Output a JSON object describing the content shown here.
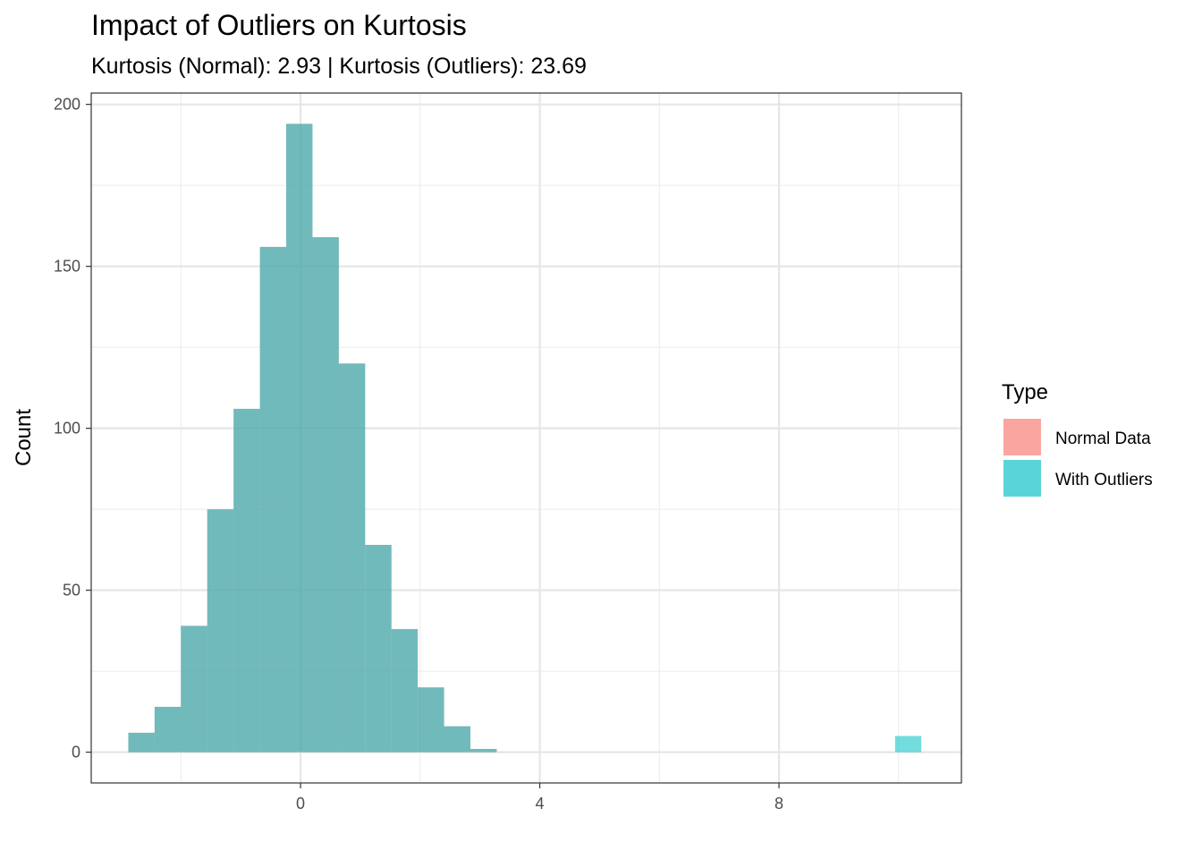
{
  "chart_data": {
    "type": "bar",
    "title": "Impact of Outliers on Kurtosis",
    "subtitle": "Kurtosis (Normal): 2.93 | Kurtosis (Outliers): 23.69",
    "xlabel": "",
    "ylabel": "Count",
    "xlim": [
      -3.5,
      11.05
    ],
    "ylim": [
      -9.5,
      203.5
    ],
    "x_ticks": [
      0,
      4,
      8
    ],
    "y_ticks": [
      0,
      50,
      100,
      150,
      200
    ],
    "binwidth": 0.44,
    "grid": true,
    "legend": {
      "title": "Type",
      "position": "right",
      "items": [
        {
          "label": "Normal Data",
          "color": "#F8766D"
        },
        {
          "label": "With Outliers",
          "color": "#00BFC4"
        }
      ]
    },
    "series": [
      {
        "name": "Normal Data",
        "color": "#F8766D",
        "bins": [
          {
            "x": -2.66,
            "count": 6
          },
          {
            "x": -2.22,
            "count": 14
          },
          {
            "x": -1.78,
            "count": 39
          },
          {
            "x": -1.34,
            "count": 75
          },
          {
            "x": -0.9,
            "count": 106
          },
          {
            "x": -0.46,
            "count": 156
          },
          {
            "x": -0.02,
            "count": 194
          },
          {
            "x": 0.42,
            "count": 159
          },
          {
            "x": 0.86,
            "count": 120
          },
          {
            "x": 1.3,
            "count": 64
          },
          {
            "x": 1.74,
            "count": 38
          },
          {
            "x": 2.18,
            "count": 20
          },
          {
            "x": 2.62,
            "count": 8
          },
          {
            "x": 3.06,
            "count": 1
          }
        ]
      },
      {
        "name": "With Outliers",
        "color": "#00BFC4",
        "bins": [
          {
            "x": -2.66,
            "count": 6
          },
          {
            "x": -2.22,
            "count": 14
          },
          {
            "x": -1.78,
            "count": 39
          },
          {
            "x": -1.34,
            "count": 75
          },
          {
            "x": -0.9,
            "count": 106
          },
          {
            "x": -0.46,
            "count": 156
          },
          {
            "x": -0.02,
            "count": 194
          },
          {
            "x": 0.42,
            "count": 159
          },
          {
            "x": 0.86,
            "count": 120
          },
          {
            "x": 1.3,
            "count": 64
          },
          {
            "x": 1.74,
            "count": 38
          },
          {
            "x": 2.18,
            "count": 20
          },
          {
            "x": 2.62,
            "count": 8
          },
          {
            "x": 3.06,
            "count": 1
          },
          {
            "x": 10.16,
            "count": 5
          }
        ]
      }
    ]
  }
}
